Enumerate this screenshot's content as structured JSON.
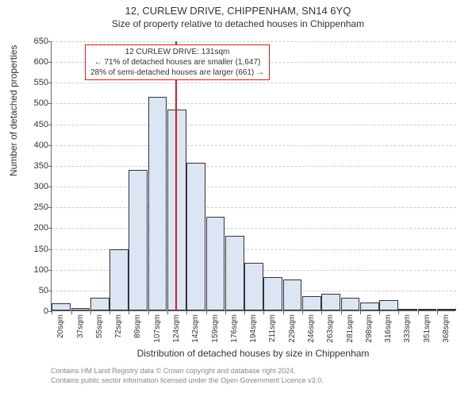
{
  "title": "12, CURLEW DRIVE, CHIPPENHAM, SN14 6YQ",
  "subtitle": "Size of property relative to detached houses in Chippenham",
  "ylabel": "Number of detached properties",
  "xlabel": "Distribution of detached houses by size in Chippenham",
  "footer1": "Contains HM Land Registry data © Crown copyright and database right 2024.",
  "footer2": "Contains public sector information licensed under the Open Government Licence v3.0.",
  "chart": {
    "type": "histogram",
    "ylim": [
      0,
      650
    ],
    "yticks": [
      0,
      50,
      100,
      150,
      200,
      250,
      300,
      350,
      400,
      450,
      500,
      550,
      600,
      650
    ],
    "bar_fill": "#dbe5f4",
    "bar_stroke": "#333333",
    "grid_color": "#cccccc",
    "background_color": "#ffffff",
    "bar_width_ratio": 0.98,
    "xticks": [
      "20sqm",
      "37sqm",
      "55sqm",
      "72sqm",
      "89sqm",
      "107sqm",
      "124sqm",
      "142sqm",
      "159sqm",
      "176sqm",
      "194sqm",
      "211sqm",
      "229sqm",
      "246sqm",
      "263sqm",
      "281sqm",
      "298sqm",
      "316sqm",
      "333sqm",
      "351sqm",
      "368sqm"
    ],
    "values": [
      18,
      5,
      30,
      148,
      338,
      515,
      483,
      355,
      225,
      180,
      115,
      80,
      75,
      35,
      40,
      30,
      20,
      25,
      3,
      3,
      3
    ],
    "marker": {
      "color": "#d8201f",
      "x_index": 6.4
    },
    "annotation": {
      "border_color": "#d8201f",
      "lines": [
        "12 CURLEW DRIVE: 131sqm",
        "← 71% of detached houses are smaller (1,647)",
        "28% of semi-detached houses are larger (661) →"
      ]
    }
  }
}
